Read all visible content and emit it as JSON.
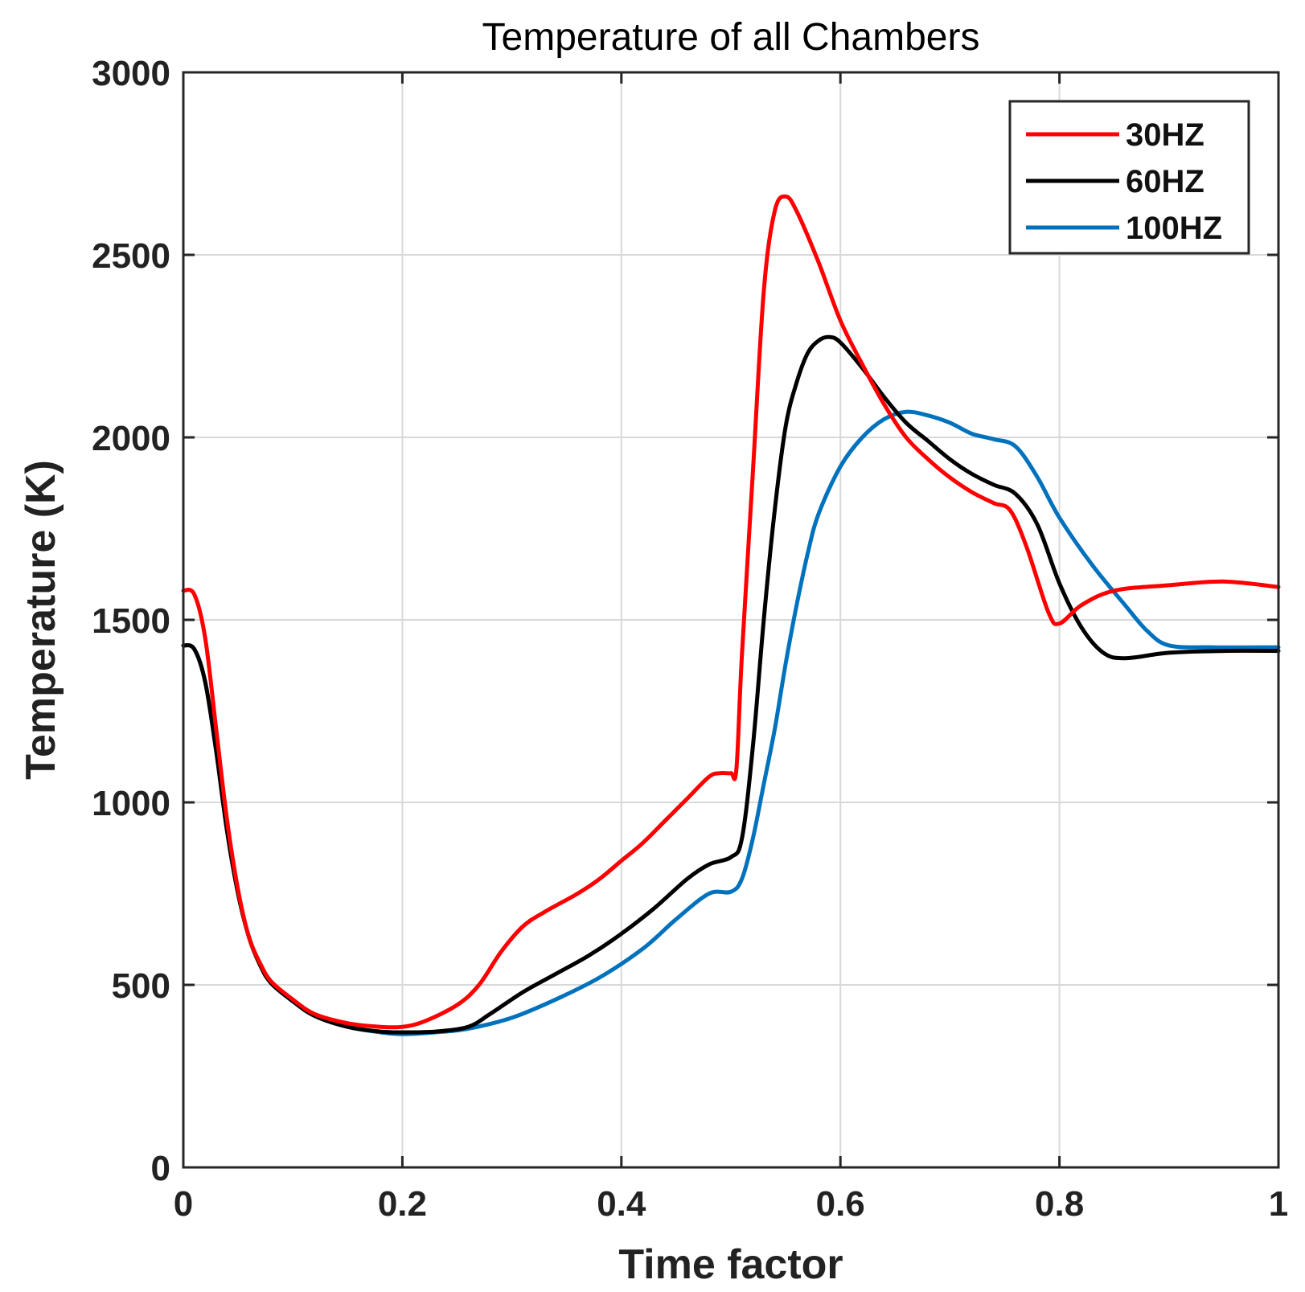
{
  "chart_data": {
    "type": "line",
    "title": "Temperature of all Chambers",
    "xlabel": "Time factor",
    "ylabel": "Temperature (K)",
    "xlim": [
      0,
      1
    ],
    "ylim": [
      0,
      3000
    ],
    "x_ticks": [
      0,
      0.2,
      0.4,
      0.6,
      0.8,
      1
    ],
    "x_tick_labels": [
      "0",
      "0.2",
      "0.4",
      "0.6",
      "0.8",
      "1"
    ],
    "y_ticks": [
      0,
      500,
      1000,
      1500,
      2000,
      2500,
      3000
    ],
    "y_tick_labels": [
      "0",
      "500",
      "1000",
      "1500",
      "2000",
      "2500",
      "3000"
    ],
    "grid": true,
    "legend_position": "top-right",
    "series": [
      {
        "name": "30HZ",
        "color": "#ff0000",
        "points": [
          [
            0,
            1580
          ],
          [
            0.01,
            1570
          ],
          [
            0.02,
            1450
          ],
          [
            0.03,
            1200
          ],
          [
            0.04,
            950
          ],
          [
            0.05,
            760
          ],
          [
            0.06,
            630
          ],
          [
            0.07,
            560
          ],
          [
            0.08,
            510
          ],
          [
            0.1,
            460
          ],
          [
            0.12,
            420
          ],
          [
            0.15,
            395
          ],
          [
            0.18,
            385
          ],
          [
            0.2,
            385
          ],
          [
            0.22,
            400
          ],
          [
            0.25,
            445
          ],
          [
            0.27,
            500
          ],
          [
            0.29,
            590
          ],
          [
            0.31,
            660
          ],
          [
            0.33,
            700
          ],
          [
            0.36,
            750
          ],
          [
            0.38,
            790
          ],
          [
            0.4,
            840
          ],
          [
            0.42,
            890
          ],
          [
            0.44,
            950
          ],
          [
            0.46,
            1010
          ],
          [
            0.48,
            1070
          ],
          [
            0.49,
            1080
          ],
          [
            0.5,
            1080
          ],
          [
            0.505,
            1090
          ],
          [
            0.51,
            1400
          ],
          [
            0.52,
            1900
          ],
          [
            0.53,
            2400
          ],
          [
            0.54,
            2620
          ],
          [
            0.55,
            2660
          ],
          [
            0.56,
            2620
          ],
          [
            0.58,
            2480
          ],
          [
            0.6,
            2320
          ],
          [
            0.62,
            2200
          ],
          [
            0.64,
            2090
          ],
          [
            0.66,
            2000
          ],
          [
            0.68,
            1940
          ],
          [
            0.7,
            1890
          ],
          [
            0.72,
            1850
          ],
          [
            0.74,
            1820
          ],
          [
            0.755,
            1800
          ],
          [
            0.77,
            1700
          ],
          [
            0.79,
            1520
          ],
          [
            0.8,
            1490
          ],
          [
            0.82,
            1540
          ],
          [
            0.85,
            1580
          ],
          [
            0.9,
            1595
          ],
          [
            0.95,
            1605
          ],
          [
            1.0,
            1590
          ]
        ]
      },
      {
        "name": "60HZ",
        "color": "#000000",
        "points": [
          [
            0,
            1430
          ],
          [
            0.01,
            1420
          ],
          [
            0.02,
            1330
          ],
          [
            0.03,
            1140
          ],
          [
            0.04,
            920
          ],
          [
            0.05,
            750
          ],
          [
            0.06,
            630
          ],
          [
            0.07,
            555
          ],
          [
            0.08,
            505
          ],
          [
            0.1,
            455
          ],
          [
            0.12,
            415
          ],
          [
            0.15,
            385
          ],
          [
            0.18,
            372
          ],
          [
            0.2,
            370
          ],
          [
            0.23,
            372
          ],
          [
            0.26,
            385
          ],
          [
            0.28,
            420
          ],
          [
            0.31,
            480
          ],
          [
            0.34,
            530
          ],
          [
            0.37,
            580
          ],
          [
            0.4,
            640
          ],
          [
            0.43,
            710
          ],
          [
            0.46,
            790
          ],
          [
            0.48,
            830
          ],
          [
            0.5,
            850
          ],
          [
            0.51,
            900
          ],
          [
            0.52,
            1150
          ],
          [
            0.53,
            1500
          ],
          [
            0.54,
            1800
          ],
          [
            0.55,
            2030
          ],
          [
            0.56,
            2150
          ],
          [
            0.57,
            2230
          ],
          [
            0.58,
            2265
          ],
          [
            0.59,
            2275
          ],
          [
            0.6,
            2260
          ],
          [
            0.62,
            2190
          ],
          [
            0.64,
            2110
          ],
          [
            0.66,
            2040
          ],
          [
            0.68,
            1990
          ],
          [
            0.7,
            1940
          ],
          [
            0.72,
            1900
          ],
          [
            0.74,
            1870
          ],
          [
            0.76,
            1845
          ],
          [
            0.78,
            1760
          ],
          [
            0.8,
            1600
          ],
          [
            0.82,
            1480
          ],
          [
            0.84,
            1410
          ],
          [
            0.86,
            1395
          ],
          [
            0.9,
            1410
          ],
          [
            0.95,
            1415
          ],
          [
            1.0,
            1415
          ]
        ]
      },
      {
        "name": "100HZ",
        "color": "#0072bd",
        "points": [
          [
            0,
            1430
          ],
          [
            0.01,
            1420
          ],
          [
            0.02,
            1330
          ],
          [
            0.03,
            1140
          ],
          [
            0.04,
            920
          ],
          [
            0.05,
            750
          ],
          [
            0.06,
            630
          ],
          [
            0.07,
            555
          ],
          [
            0.08,
            505
          ],
          [
            0.1,
            455
          ],
          [
            0.12,
            415
          ],
          [
            0.15,
            385
          ],
          [
            0.18,
            370
          ],
          [
            0.2,
            365
          ],
          [
            0.23,
            370
          ],
          [
            0.26,
            380
          ],
          [
            0.3,
            410
          ],
          [
            0.34,
            460
          ],
          [
            0.38,
            520
          ],
          [
            0.42,
            600
          ],
          [
            0.45,
            680
          ],
          [
            0.48,
            750
          ],
          [
            0.5,
            755
          ],
          [
            0.51,
            790
          ],
          [
            0.52,
            900
          ],
          [
            0.53,
            1050
          ],
          [
            0.54,
            1200
          ],
          [
            0.55,
            1380
          ],
          [
            0.56,
            1540
          ],
          [
            0.57,
            1680
          ],
          [
            0.58,
            1790
          ],
          [
            0.6,
            1920
          ],
          [
            0.62,
            2000
          ],
          [
            0.64,
            2050
          ],
          [
            0.66,
            2070
          ],
          [
            0.68,
            2060
          ],
          [
            0.7,
            2040
          ],
          [
            0.72,
            2010
          ],
          [
            0.74,
            1995
          ],
          [
            0.76,
            1975
          ],
          [
            0.78,
            1890
          ],
          [
            0.8,
            1780
          ],
          [
            0.83,
            1650
          ],
          [
            0.86,
            1540
          ],
          [
            0.88,
            1470
          ],
          [
            0.9,
            1430
          ],
          [
            0.94,
            1425
          ],
          [
            1.0,
            1425
          ]
        ]
      }
    ]
  }
}
